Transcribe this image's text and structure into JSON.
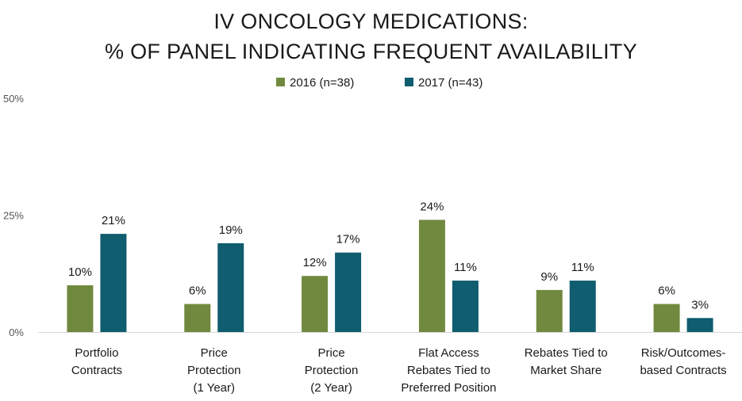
{
  "chart_data": {
    "type": "bar",
    "title": [
      "IV ONCOLOGY MEDICATIONS:",
      "% OF PANEL INDICATING FREQUENT AVAILABILITY"
    ],
    "categories": [
      [
        "Portfolio",
        "Contracts"
      ],
      [
        "Price",
        "Protection",
        "(1 Year)"
      ],
      [
        "Price",
        "Protection",
        "(2 Year)"
      ],
      [
        "Flat Access",
        "Rebates Tied to",
        "Preferred Position"
      ],
      [
        "Rebates Tied to",
        "Market Share"
      ],
      [
        "Risk/Outcomes-",
        "based Contracts"
      ]
    ],
    "series": [
      {
        "name": "2016 (n=38)",
        "color": "#71893f",
        "values": [
          10,
          6,
          12,
          24,
          9,
          6
        ],
        "labels": [
          "10%",
          "6%",
          "12%",
          "24%",
          "9%",
          "6%"
        ]
      },
      {
        "name": "2017 (n=43)",
        "color": "#0f5d6e",
        "values": [
          21,
          19,
          17,
          11,
          11,
          3
        ],
        "labels": [
          "21%",
          "19%",
          "17%",
          "11%",
          "11%",
          "3%"
        ]
      }
    ],
    "ylim": [
      0,
      50
    ],
    "yticks": [
      0,
      25,
      50
    ],
    "ytick_labels": [
      "0%",
      "25%",
      "50%"
    ],
    "legend_position": "top-center",
    "grid": false
  }
}
